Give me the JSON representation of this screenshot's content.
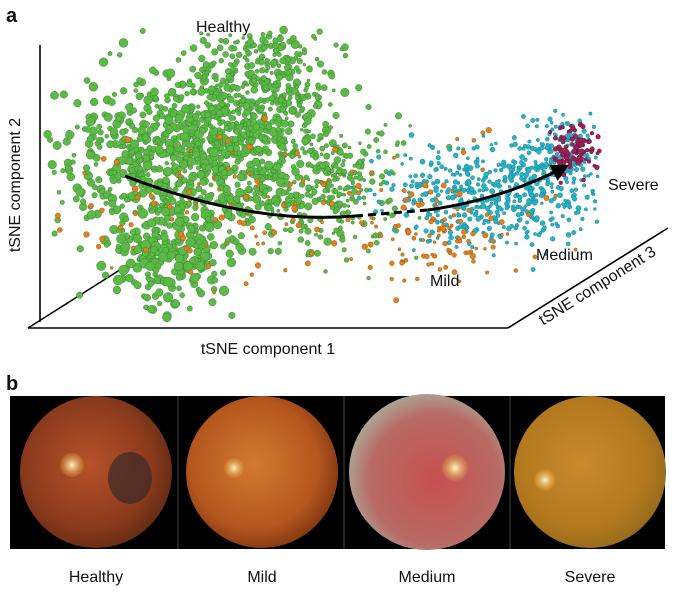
{
  "panels": [
    {
      "label": "a",
      "axes": {
        "x": "tSNE component 1",
        "y": "tSNE component 2",
        "z": "tSNE component 3"
      },
      "annotations": [
        "Healthy",
        "Mild",
        "Medium",
        "Severe"
      ]
    },
    {
      "label": "b",
      "captions": [
        "Healthy",
        "Mild",
        "Medium",
        "Severe"
      ]
    }
  ]
}
